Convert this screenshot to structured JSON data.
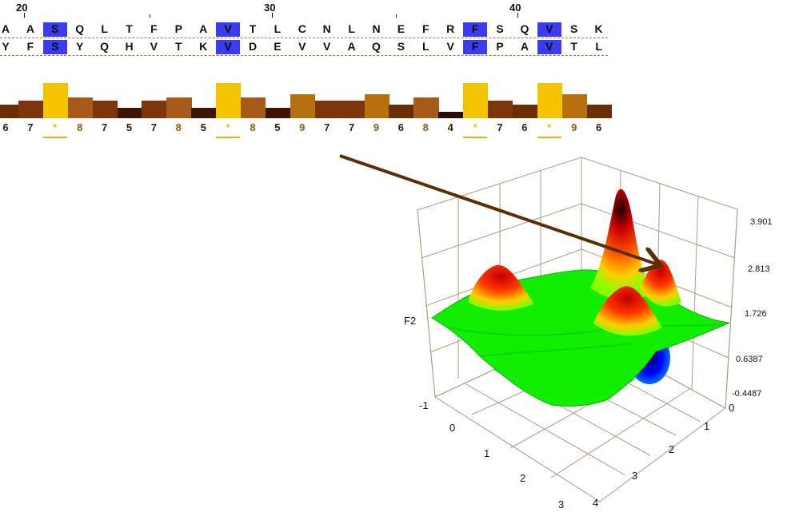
{
  "ruler": {
    "ticks": [
      "20",
      "30",
      "40"
    ],
    "ticks_minor": [
      "",
      ""
    ]
  },
  "sequence_top": [
    "A",
    "A",
    "S",
    "Q",
    "L",
    "T",
    "F",
    "P",
    "A",
    "V",
    "T",
    "L",
    "C",
    "N",
    "L",
    "N",
    "E",
    "F",
    "R",
    "F",
    "S",
    "Q",
    "V",
    "S",
    "K"
  ],
  "sequence_bottom": [
    "Y",
    "F",
    "S",
    "Y",
    "Q",
    "H",
    "V",
    "T",
    "K",
    "V",
    "D",
    "E",
    "V",
    "V",
    "A",
    "Q",
    "S",
    "L",
    "V",
    "F",
    "P",
    "A",
    "V",
    "T",
    "L"
  ],
  "highlight_columns": [
    2,
    9,
    19,
    22
  ],
  "conservation_scores": [
    "6",
    "7",
    "*",
    "8",
    "7",
    "5",
    "7",
    "8",
    "5",
    "*",
    "8",
    "5",
    "9",
    "7",
    "7",
    "9",
    "6",
    "8",
    "4",
    "*",
    "7",
    "6",
    "*",
    "9",
    "6"
  ],
  "colors": {
    "highlight": "#3b3bf0",
    "bar_conserved": "#f5c400",
    "bar_9": "#b8700e",
    "bar_8": "#a75a1a",
    "bar_7": "#7a3608",
    "bar_6": "#6a2e06",
    "bar_5": "#3e1402",
    "bar_4": "#2a0c00",
    "arrow": "#5a2e05",
    "surface_low": "#00ff00",
    "surface_high": "#ff0000",
    "surface_peak": "#1a0000",
    "surface_trough": "#0000ff"
  },
  "surface_plot": {
    "axis_label": "F2",
    "z_ticks": [
      "3.901",
      "2.813",
      "1.726",
      "0.6387",
      "-0.4487"
    ],
    "x_ticks": [
      "0",
      "1",
      "2",
      "3"
    ],
    "y_ticks": [
      "0",
      "1",
      "2",
      "3",
      "4"
    ],
    "corner_tick": "-1"
  }
}
